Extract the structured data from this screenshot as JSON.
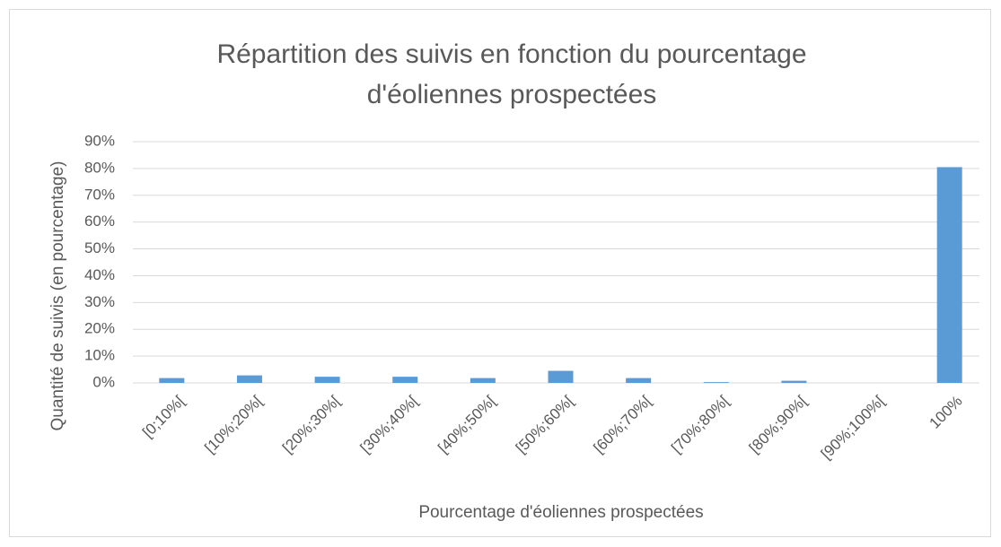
{
  "chart_data": {
    "type": "bar",
    "title": "Répartition des suivis en fonction du pourcentage d'éoliennes prospectées",
    "x_label": "Pourcentage d'éoliennes prospectées",
    "y_label": "Quantité de suivis (en pourcentage)",
    "categories": [
      "[0;10%[",
      "[10%;20%[",
      "[20%;30%[",
      "[30%;40%[",
      "[40%;50%[",
      "[50%;60%[",
      "[60%;70%[",
      "[70%;80%[",
      "[80%;90%[",
      "[90%;100%[",
      "100%"
    ],
    "values": [
      1.8,
      2.8,
      2.3,
      2.3,
      1.8,
      4.5,
      1.8,
      0.3,
      0.8,
      0,
      80.5
    ],
    "color": "#5b9bd5",
    "ylim": [
      0,
      90
    ],
    "yticks": [
      {
        "value": 0,
        "label": "0%"
      },
      {
        "value": 10,
        "label": "10%"
      },
      {
        "value": 20,
        "label": "20%"
      },
      {
        "value": 30,
        "label": "30%"
      },
      {
        "value": 40,
        "label": "40%"
      },
      {
        "value": 50,
        "label": "50%"
      },
      {
        "value": 60,
        "label": "60%"
      },
      {
        "value": 70,
        "label": "70%"
      },
      {
        "value": 80,
        "label": "80%"
      },
      {
        "value": 90,
        "label": "90%"
      }
    ],
    "grid": true
  }
}
